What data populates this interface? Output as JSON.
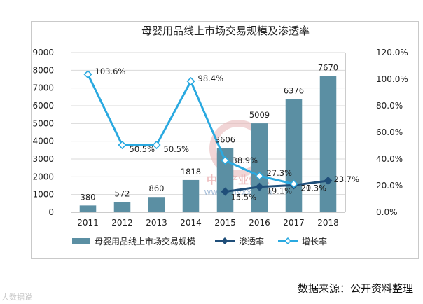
{
  "chart_data": {
    "type": "bar+line",
    "title": "母婴用品线上市场交易规模及渗透率",
    "categories": [
      "2011",
      "2012",
      "2013",
      "2014",
      "2015",
      "2016",
      "2017",
      "2018"
    ],
    "bar_series": {
      "name": "母婴用品线上市场交易规模",
      "values": [
        380,
        572,
        860,
        1818,
        3606,
        5009,
        6376,
        7670
      ],
      "labels": [
        "380",
        "572",
        "860",
        "1818",
        "3606",
        "5009",
        "6376",
        "7670"
      ],
      "color": "#5b8fa3"
    },
    "line_series": [
      {
        "name": "渗透率",
        "values": [
          null,
          null,
          null,
          null,
          15.5,
          19.1,
          20.3,
          23.7
        ],
        "labels": [
          "",
          "",
          "",
          "",
          "15.5%",
          "19.1%",
          "20.3%",
          "23.7%"
        ],
        "color": "#1f4e79",
        "marker": "diamond"
      },
      {
        "name": "增长率",
        "values": [
          103.6,
          50.5,
          50.5,
          98.4,
          38.9,
          27.3,
          21.3,
          null
        ],
        "labels": [
          "103.6%",
          "50.5%",
          "50.5%",
          "98.4%",
          "38.9%",
          "27.3%",
          "21.3%",
          ""
        ],
        "color": "#2aa9e0",
        "marker": "diamond-hollow"
      }
    ],
    "y_left": {
      "min": 0,
      "max": 9000,
      "ticks": [
        "0",
        "1000",
        "2000",
        "3000",
        "4000",
        "5000",
        "6000",
        "7000",
        "8000",
        "9000"
      ]
    },
    "y_right": {
      "min": 0,
      "max": 120,
      "ticks": [
        "0.0%",
        "20.0%",
        "40.0%",
        "60.0%",
        "80.0%",
        "100.0%",
        "120.0%"
      ]
    },
    "legend": "bottom",
    "grid": true
  },
  "source": "数据来源：公开资料整理",
  "watermark": {
    "text1": "中国产业信息",
    "text2": "www.chyxx.com",
    "corner": "大数据说"
  }
}
